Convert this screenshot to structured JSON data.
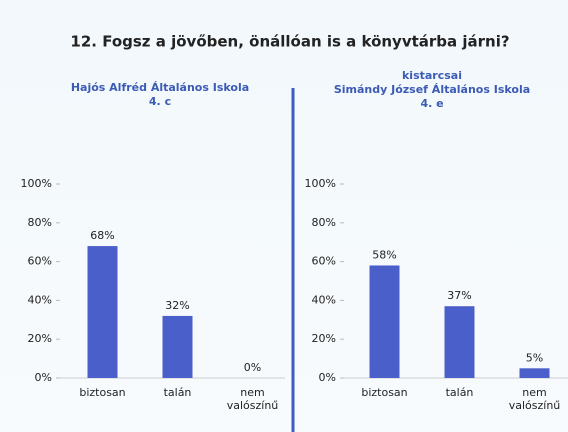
{
  "title": "12. Fogsz a jövőben, önállóan is a könyvtárba járni?",
  "chart_data": [
    {
      "type": "bar",
      "title": [
        "Hajós Alfréd Általános Iskola",
        "4. c"
      ],
      "categories": [
        "biztosan",
        "talán",
        "nem valószínű"
      ],
      "values": [
        68,
        32,
        0
      ],
      "value_labels": [
        "68%",
        "32%",
        "0%"
      ],
      "color": "#4a5fc9",
      "ylim": [
        0,
        100
      ],
      "yticks": [
        {
          "value": 0,
          "label": "0%"
        },
        {
          "value": 20,
          "label": "20%"
        },
        {
          "value": 40,
          "label": "40%"
        },
        {
          "value": 60,
          "label": "60%"
        },
        {
          "value": 80,
          "label": "80%"
        },
        {
          "value": 100,
          "label": "100%"
        }
      ]
    },
    {
      "type": "bar",
      "title": [
        "kistarcsai",
        "Simándy József Általános Iskola",
        "4. e"
      ],
      "categories": [
        "biztosan",
        "talán",
        "nem valószínű"
      ],
      "values": [
        58,
        37,
        5
      ],
      "value_labels": [
        "58%",
        "37%",
        "5%"
      ],
      "color": "#4a5fc9",
      "ylim": [
        0,
        100
      ],
      "yticks": [
        {
          "value": 0,
          "label": "0%"
        },
        {
          "value": 20,
          "label": "20%"
        },
        {
          "value": 40,
          "label": "40%"
        },
        {
          "value": 60,
          "label": "60%"
        },
        {
          "value": 80,
          "label": "80%"
        },
        {
          "value": 100,
          "label": "100%"
        }
      ]
    }
  ]
}
